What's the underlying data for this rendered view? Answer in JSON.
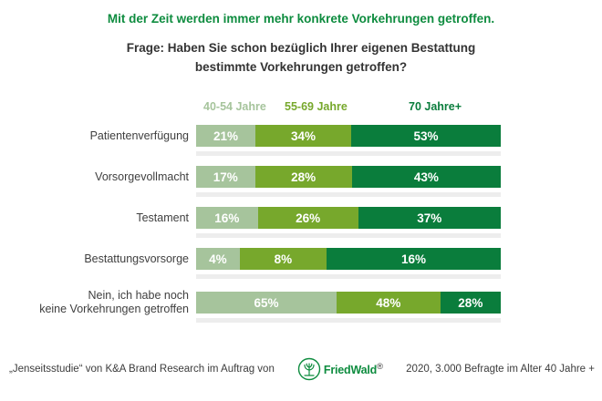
{
  "header": {
    "title": "Mit der Zeit werden immer mehr konkrete Vorkehrungen getroffen.",
    "subtitle_lines": [
      "Frage: Haben Sie schon bezüglich Ihrer eigenen Bestattung",
      "bestimmte Vorkehrungen getroffen?"
    ],
    "title_color": "#0e8c3f"
  },
  "chart_data": {
    "type": "bar",
    "variant": "horizontal-stacked-normalized",
    "title": "Haben Sie schon bezüglich Ihrer eigenen Bestattung bestimmte Vorkehrungen getroffen?",
    "legend_position": "top",
    "grid": false,
    "value_format": "percent",
    "categories": [
      "Patientenverfügung",
      "Vorsorgevollmacht",
      "Testament",
      "Bestattungsvorsorge",
      "Nein, ich habe noch keine Vorkehrungen getroffen"
    ],
    "categories_display": [
      "Patientenverfügung",
      "Vorsorgevollmacht",
      "Testament",
      "Bestattungsvorsorge",
      "Nein, ich habe noch\nkeine Vorkehrungen getroffen"
    ],
    "series": [
      {
        "name": "40-54 Jahre",
        "color": "#a6c49c",
        "values": [
          21,
          17,
          16,
          4,
          65
        ]
      },
      {
        "name": "55-69 Jahre",
        "color": "#77a82c",
        "values": [
          34,
          28,
          26,
          8,
          48
        ]
      },
      {
        "name": "70 Jahre+",
        "color": "#0a7d3c",
        "values": [
          53,
          43,
          37,
          16,
          28
        ]
      }
    ]
  },
  "footer": {
    "source_prefix": "„Jenseitsstudie“ von K&A Brand Research im Auftrag von",
    "brand": "FriedWald",
    "brand_registered": "®",
    "source_suffix": "2020, 3.000 Befragte im Alter 40 Jahre +",
    "brand_color": "#0e8c3f"
  }
}
